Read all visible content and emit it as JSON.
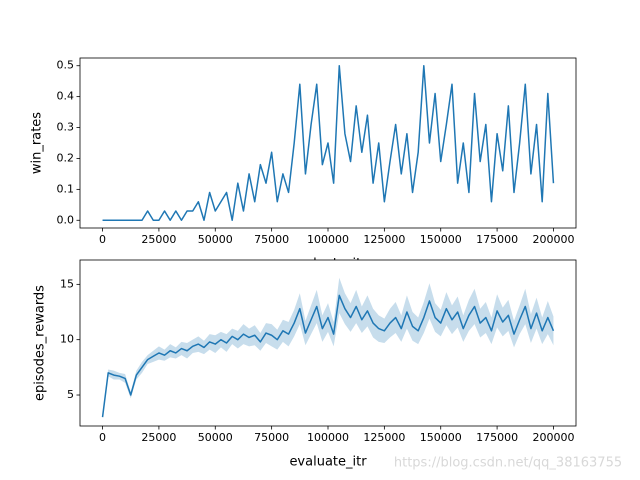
{
  "watermark": "https://blog.csdn.net/qq_38163755",
  "chart_data": [
    {
      "type": "line",
      "xlabel": "evaluate_itr",
      "ylabel": "win_rates",
      "xlim": [
        -10000,
        210000
      ],
      "ylim": [
        -0.025,
        0.525
      ],
      "xticks": [
        0,
        25000,
        50000,
        75000,
        100000,
        125000,
        150000,
        175000,
        200000
      ],
      "yticks": [
        {
          "value": 0,
          "label": "0.0"
        },
        0.1,
        0.2,
        0.3,
        0.4,
        0.5
      ],
      "x": [
        0,
        2500,
        5000,
        7500,
        10000,
        12500,
        15000,
        17500,
        20000,
        22500,
        25000,
        27500,
        30000,
        32500,
        35000,
        37500,
        40000,
        42500,
        45000,
        47500,
        50000,
        52500,
        55000,
        57500,
        60000,
        62500,
        65000,
        67500,
        70000,
        72500,
        75000,
        77500,
        80000,
        82500,
        85000,
        87500,
        90000,
        92500,
        95000,
        97500,
        100000,
        102500,
        105000,
        107500,
        110000,
        112500,
        115000,
        117500,
        120000,
        122500,
        125000,
        127500,
        130000,
        132500,
        135000,
        137500,
        140000,
        142500,
        145000,
        147500,
        150000,
        152500,
        155000,
        157500,
        160000,
        162500,
        165000,
        167500,
        170000,
        172500,
        175000,
        177500,
        180000,
        182500,
        185000,
        187500,
        190000,
        192500,
        195000,
        197500,
        200000
      ],
      "series": [
        {
          "color": "#1f77b4",
          "values": [
            0,
            0,
            0,
            0,
            0,
            0,
            0,
            0,
            0.03,
            0,
            0,
            0.03,
            0,
            0.03,
            0,
            0.03,
            0.03,
            0.06,
            0,
            0.09,
            0.03,
            0.06,
            0.09,
            0,
            0.12,
            0.03,
            0.15,
            0.06,
            0.18,
            0.12,
            0.22,
            0.06,
            0.15,
            0.09,
            0.25,
            0.44,
            0.15,
            0.31,
            0.44,
            0.18,
            0.25,
            0.12,
            0.5,
            0.28,
            0.19,
            0.37,
            0.22,
            0.34,
            0.12,
            0.25,
            0.06,
            0.19,
            0.31,
            0.15,
            0.28,
            0.09,
            0.22,
            0.5,
            0.25,
            0.41,
            0.19,
            0.31,
            0.44,
            0.12,
            0.25,
            0.09,
            0.41,
            0.19,
            0.31,
            0.06,
            0.28,
            0.16,
            0.37,
            0.09,
            0.25,
            0.44,
            0.15,
            0.31,
            0.06,
            0.41,
            0.12
          ]
        }
      ]
    },
    {
      "type": "line",
      "xlabel": "evaluate_itr",
      "ylabel": "episodes_rewards",
      "xlim": [
        -10000,
        210000
      ],
      "ylim": [
        2.2,
        17.2
      ],
      "xticks": [
        0,
        25000,
        50000,
        75000,
        100000,
        125000,
        150000,
        175000,
        200000
      ],
      "yticks": [
        5,
        10,
        15
      ],
      "x": [
        0,
        2500,
        5000,
        7500,
        10000,
        12500,
        15000,
        17500,
        20000,
        22500,
        25000,
        27500,
        30000,
        32500,
        35000,
        37500,
        40000,
        42500,
        45000,
        47500,
        50000,
        52500,
        55000,
        57500,
        60000,
        62500,
        65000,
        67500,
        70000,
        72500,
        75000,
        77500,
        80000,
        82500,
        85000,
        87500,
        90000,
        92500,
        95000,
        97500,
        100000,
        102500,
        105000,
        107500,
        110000,
        112500,
        115000,
        117500,
        120000,
        122500,
        125000,
        127500,
        130000,
        132500,
        135000,
        137500,
        140000,
        142500,
        145000,
        147500,
        150000,
        152500,
        155000,
        157500,
        160000,
        162500,
        165000,
        167500,
        170000,
        172500,
        175000,
        177500,
        180000,
        182500,
        185000,
        187500,
        190000,
        192500,
        195000,
        197500,
        200000
      ],
      "series": [
        {
          "color": "#1f77b4",
          "values": [
            3,
            7.0,
            6.8,
            6.7,
            6.5,
            5.0,
            6.8,
            7.5,
            8.2,
            8.5,
            8.8,
            8.6,
            9.0,
            8.8,
            9.2,
            9.0,
            9.4,
            9.6,
            9.3,
            9.8,
            9.6,
            10.0,
            9.7,
            10.3,
            10.0,
            10.5,
            10.2,
            10.4,
            9.8,
            10.6,
            10.4,
            10.0,
            10.8,
            10.5,
            11.5,
            12.8,
            10.6,
            11.8,
            13.0,
            11.0,
            12.0,
            10.5,
            14.0,
            12.8,
            12.0,
            13.0,
            11.8,
            12.6,
            11.5,
            11.0,
            10.8,
            11.5,
            12.0,
            11.0,
            12.5,
            11.2,
            10.8,
            12.0,
            13.5,
            12.0,
            11.5,
            12.8,
            11.8,
            12.5,
            11.0,
            12.2,
            13.0,
            11.5,
            12.0,
            10.8,
            12.6,
            11.6,
            12.2,
            10.5,
            11.8,
            13.0,
            11.0,
            12.4,
            10.8,
            12.0,
            10.8
          ],
          "error": [
            0.1,
            0.3,
            0.4,
            0.3,
            0.4,
            0.3,
            0.4,
            0.5,
            0.4,
            0.5,
            0.6,
            0.5,
            0.6,
            0.5,
            0.6,
            0.7,
            0.6,
            0.7,
            0.6,
            0.7,
            0.8,
            0.7,
            0.8,
            0.7,
            0.8,
            0.9,
            0.8,
            0.9,
            0.8,
            0.9,
            1.0,
            0.9,
            1.0,
            1.1,
            1.2,
            1.4,
            1.1,
            1.3,
            1.5,
            1.2,
            1.3,
            1.1,
            1.6,
            1.4,
            1.3,
            1.5,
            1.2,
            1.4,
            1.3,
            1.2,
            1.1,
            1.3,
            1.4,
            1.2,
            1.5,
            1.3,
            1.2,
            1.4,
            1.6,
            1.3,
            1.2,
            1.5,
            1.3,
            1.4,
            1.2,
            1.4,
            1.6,
            1.3,
            1.4,
            1.2,
            1.5,
            1.3,
            1.4,
            1.2,
            1.3,
            1.6,
            1.3,
            1.4,
            1.2,
            1.5,
            1.3
          ]
        }
      ]
    }
  ]
}
